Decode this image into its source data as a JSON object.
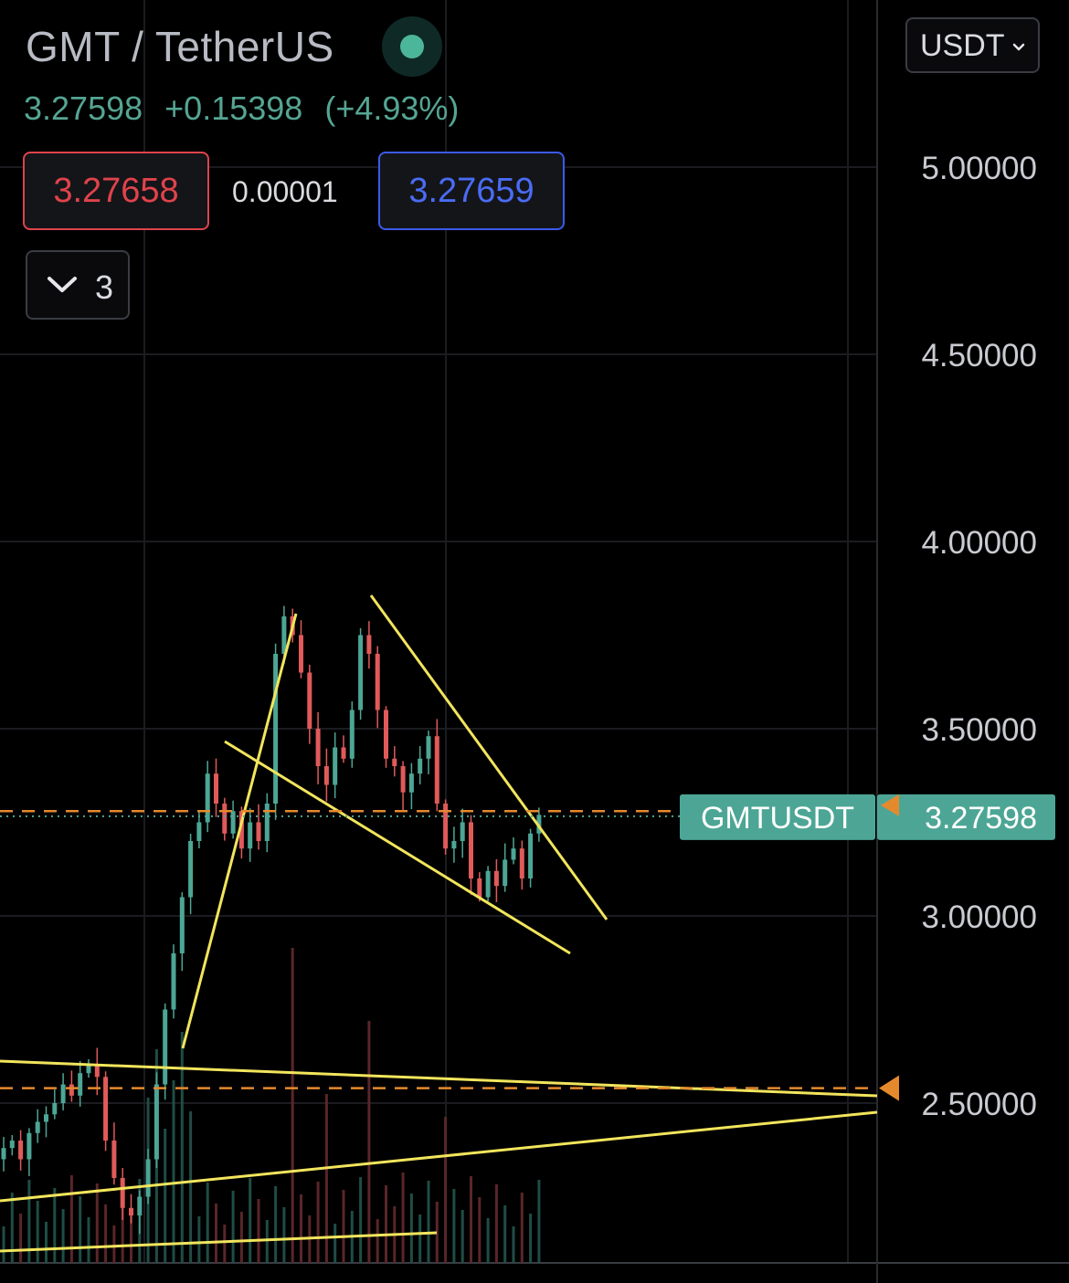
{
  "header": {
    "pair_title": "GMT / TetherUS",
    "last_price": "3.27598",
    "change": "+0.15398",
    "change_pct": "(+4.93%)",
    "bid_price": "3.27658",
    "spread": "0.00001",
    "ask_price": "3.27659",
    "indicator_count": "3",
    "currency": "USDT",
    "live_indicator_icon": "green-dot-icon",
    "collapse_icon": "chevron-down-icon",
    "currency_dropdown_icon": "chevron-down-icon"
  },
  "colors": {
    "background": "#000000",
    "up": "#4da695",
    "down": "#e05a5a",
    "trendline": "#f2e55c",
    "alert_line": "#e58a2c",
    "price_label_bg": "#4da695"
  },
  "chart_data": {
    "type": "candlestick",
    "symbol_label": "GMTUSDT",
    "current_price": "3.27598",
    "current_price_value": 3.27598,
    "y_axis_ticks": [
      "5.00000",
      "4.50000",
      "4.00000",
      "3.50000",
      "3.00000",
      "2.50000"
    ],
    "y_axis_values": [
      5.0,
      4.5,
      4.0,
      3.5,
      3.0,
      2.5
    ],
    "ylim": [
      2.07,
      5.38
    ],
    "alert_levels": [
      3.28,
      2.54
    ],
    "grid": true,
    "approx_close_path": [
      2.38,
      2.4,
      2.35,
      2.42,
      2.45,
      2.47,
      2.5,
      2.55,
      2.52,
      2.58,
      2.6,
      2.57,
      2.4,
      2.3,
      2.22,
      2.2,
      2.25,
      2.35,
      2.55,
      2.75,
      2.9,
      3.05,
      3.2,
      3.25,
      3.38,
      3.3,
      3.22,
      3.28,
      3.18,
      3.25,
      3.2,
      3.3,
      3.7,
      3.8,
      3.75,
      3.65,
      3.5,
      3.4,
      3.35,
      3.45,
      3.42,
      3.55,
      3.75,
      3.7,
      3.55,
      3.42,
      3.4,
      3.33,
      3.38,
      3.42,
      3.48,
      3.3,
      3.18,
      3.2,
      3.25,
      3.1,
      3.05,
      3.12,
      3.08,
      3.15,
      3.18,
      3.1,
      3.22,
      3.27
    ]
  }
}
